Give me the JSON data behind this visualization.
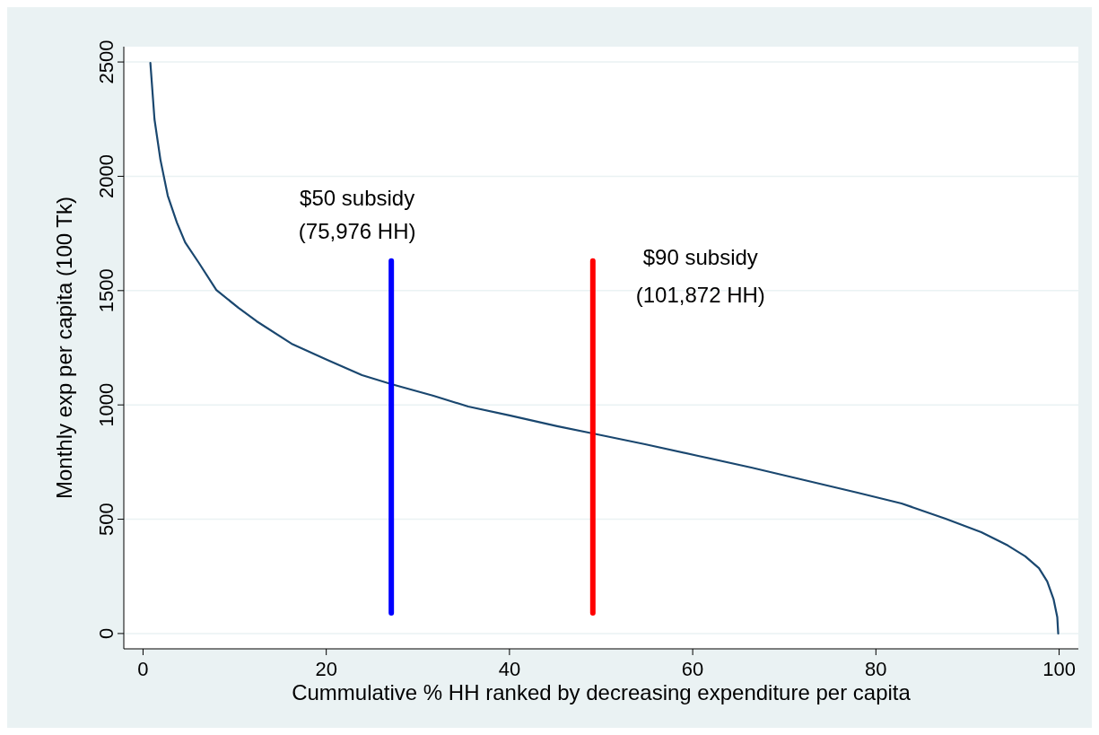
{
  "chart_data": {
    "type": "line",
    "xlabel": "Cummulative % HH ranked by decreasing expenditure per capita",
    "ylabel": "Monthly exp per capita (100 Tk)",
    "xlim": [
      -2.1,
      102.1
    ],
    "xticks": [
      0,
      20,
      40,
      60,
      80,
      100
    ],
    "ylim": [
      -67,
      2567
    ],
    "yticks": [
      0,
      500,
      1000,
      1500,
      2000,
      2500
    ],
    "grid": "y",
    "line_style": "solid",
    "marker": "none",
    "series": [
      {
        "color": "#1a476f",
        "x": [
          0.8,
          1.25,
          1.9,
          2.7,
          3.7,
          4.6,
          6.1,
          8.0,
          10.4,
          12.4,
          16.2,
          20.1,
          23.9,
          27.1,
          31.7,
          35.5,
          40,
          45.2,
          49.1,
          54.8,
          60.6,
          66.4,
          72.2,
          78,
          82.8,
          87.6,
          91.5,
          94.4,
          96.3,
          97.8,
          98.7,
          99.4,
          99.8,
          99.9
        ],
        "values": [
          2496,
          2249,
          2072,
          1915,
          1797,
          1711,
          1621,
          1503,
          1425,
          1366,
          1268,
          1197,
          1130,
          1091,
          1040,
          993,
          954,
          907,
          875,
          828,
          777,
          726,
          671,
          616,
          569,
          502,
          443,
          385,
          338,
          286,
          228,
          149,
          71,
          0
        ]
      },
      {
        "color": "#0000ff",
        "x": [
          27.1,
          27.1
        ],
        "values": [
          90,
          1630
        ]
      },
      {
        "color": "#ff0000",
        "x": [
          49.1,
          49.1
        ],
        "values": [
          90,
          1630
        ]
      }
    ],
    "annotations": [
      "$50 subsidy",
      "(75,976 HH)",
      "$90 subsidy",
      "(101,872 HH)"
    ]
  }
}
